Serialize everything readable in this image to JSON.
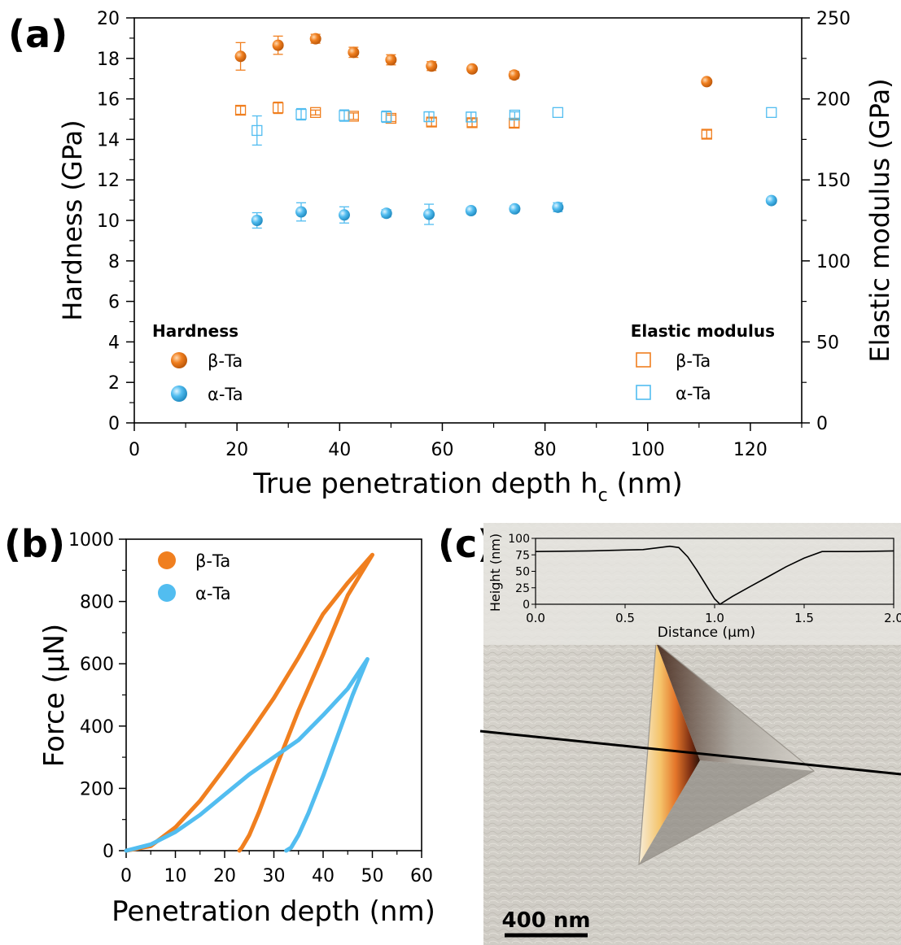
{
  "colors": {
    "beta": "#f07f1f",
    "alpha": "#52bdf0",
    "axis": "#000000"
  },
  "panel_labels": {
    "a": "(a)",
    "b": "(b)",
    "c": "(c)"
  },
  "chart_data": [
    {
      "type": "scatter",
      "panel": "(a)",
      "xlabel": "True penetration depth h",
      "xlabel_sub": "c",
      "xlabel_unit": " (nm)",
      "ylabel": "Hardness (GPa)",
      "y2label": "Elastic modulus (GPa)",
      "xlim": [
        0,
        130
      ],
      "ylim": [
        0,
        20
      ],
      "y2lim": [
        0,
        250
      ],
      "x_ticks": [
        "0",
        "20",
        "40",
        "60",
        "80",
        "100",
        "120"
      ],
      "y_ticks": [
        "0",
        "2",
        "4",
        "6",
        "8",
        "10",
        "12",
        "14",
        "16",
        "18",
        "20"
      ],
      "y2_ticks": [
        "0",
        "50",
        "100",
        "150",
        "200",
        "250"
      ],
      "legend_hardness_title": "Hardness",
      "legend_modulus_title": "Elastic modulus",
      "series": [
        {
          "name": "β-Ta",
          "group": "hardness",
          "axis": "left",
          "marker": "sphere",
          "color": "beta",
          "x": [
            20.7,
            28.0,
            35.3,
            42.7,
            50.0,
            57.9,
            65.8,
            74.0,
            111.5
          ],
          "y": [
            18.1,
            18.65,
            18.97,
            18.3,
            17.93,
            17.62,
            17.48,
            17.18,
            16.85
          ],
          "err": [
            0.68,
            0.45,
            0.22,
            0.25,
            0.25,
            0.22,
            0.12,
            0.18,
            0.1
          ]
        },
        {
          "name": "α-Ta",
          "group": "hardness",
          "axis": "left",
          "marker": "sphere",
          "color": "alpha",
          "x": [
            23.9,
            32.5,
            40.9,
            49.1,
            57.4,
            65.6,
            74.1,
            82.5,
            124.1
          ],
          "y": [
            10.0,
            10.42,
            10.27,
            10.35,
            10.3,
            10.48,
            10.57,
            10.65,
            10.98
          ],
          "err": [
            0.38,
            0.45,
            0.4,
            0.18,
            0.5,
            0.15,
            0.15,
            0.22,
            0.12
          ]
        },
        {
          "name": "β-Ta",
          "group": "modulus",
          "axis": "right",
          "marker": "square",
          "color": "beta",
          "x": [
            20.7,
            28.0,
            35.3,
            42.7,
            50.0,
            57.9,
            65.8,
            74.0,
            111.5
          ],
          "y": [
            193.0,
            194.5,
            191.6,
            189.3,
            188.0,
            185.7,
            185.3,
            185.0,
            178.2
          ],
          "err": [
            2.5,
            3.5,
            1.5,
            2.0,
            2.0,
            2.5,
            2.5,
            2.5,
            2.5
          ]
        },
        {
          "name": "α-Ta",
          "group": "modulus",
          "axis": "right",
          "marker": "square",
          "color": "alpha",
          "x": [
            23.9,
            32.5,
            40.9,
            49.1,
            57.4,
            65.6,
            74.1,
            82.5,
            124.1
          ],
          "y": [
            180.5,
            190.5,
            189.7,
            189.0,
            189.0,
            188.8,
            190.0,
            191.6,
            191.6
          ],
          "err": [
            9.0,
            3.5,
            3.5,
            3.5,
            3.0,
            3.0,
            2.0,
            0.0,
            0.0
          ]
        }
      ]
    },
    {
      "type": "line",
      "panel": "(b)",
      "xlabel": "Penetration depth (nm)",
      "ylabel": "Force (μN)",
      "xlim": [
        0,
        60
      ],
      "ylim": [
        0,
        1000
      ],
      "x_ticks": [
        "0",
        "10",
        "20",
        "30",
        "40",
        "50",
        "60"
      ],
      "y_ticks": [
        "0",
        "200",
        "400",
        "600",
        "800",
        "1000"
      ],
      "series": [
        {
          "name": "β-Ta",
          "color": "beta",
          "x": [
            0,
            5,
            10,
            15,
            20,
            25,
            30,
            35,
            40,
            45,
            50,
            45,
            40,
            35,
            30,
            27,
            25,
            23.5,
            23
          ],
          "y": [
            0,
            15,
            75,
            160,
            265,
            375,
            490,
            620,
            760,
            860,
            950,
            820,
            630,
            450,
            250,
            125,
            50,
            10,
            0
          ]
        },
        {
          "name": "α-Ta",
          "color": "alpha",
          "x": [
            0,
            5,
            10,
            15,
            20,
            25,
            30,
            35,
            40,
            45,
            49,
            46,
            43,
            40,
            37,
            35,
            33.5,
            32.5
          ],
          "y": [
            0,
            20,
            60,
            115,
            180,
            245,
            300,
            355,
            435,
            520,
            615,
            500,
            370,
            240,
            120,
            50,
            10,
            0
          ]
        }
      ]
    },
    {
      "type": "line",
      "panel": "(c) inset",
      "xlabel": "Distance (μm)",
      "ylabel": "Height (nm)",
      "xlim": [
        0,
        2.0
      ],
      "ylim": [
        0,
        100
      ],
      "x_ticks": [
        "0.0",
        "0.5",
        "1.0",
        "1.5",
        "2.0"
      ],
      "y_ticks": [
        "0",
        "25",
        "50",
        "75",
        "100"
      ],
      "series": [
        {
          "name": "profile",
          "color": "#000000",
          "x": [
            0,
            0.3,
            0.6,
            0.75,
            0.8,
            0.85,
            0.9,
            0.95,
            1.0,
            1.03,
            1.1,
            1.2,
            1.3,
            1.4,
            1.5,
            1.6,
            1.8,
            2.0
          ],
          "y": [
            80,
            81,
            83,
            88,
            86,
            72,
            52,
            30,
            8,
            0,
            12,
            27,
            42,
            57,
            70,
            80,
            80,
            81
          ]
        }
      ]
    }
  ],
  "scale_bar_label": "400 nm"
}
